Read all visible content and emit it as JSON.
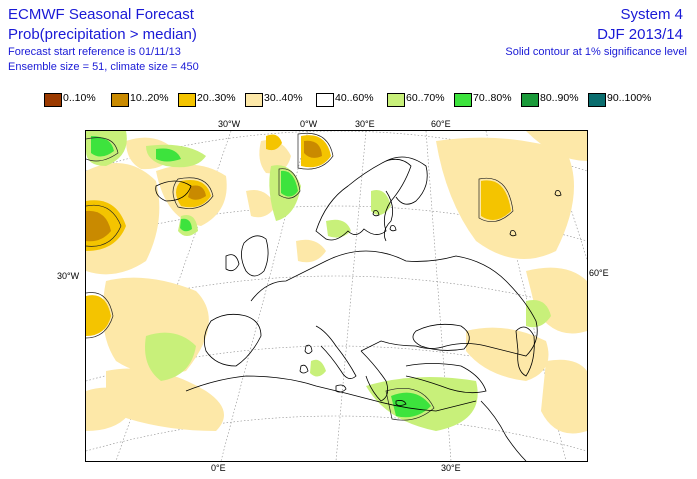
{
  "header": {
    "title": "ECMWF Seasonal Forecast",
    "subtitle": "Prob(precipitation > median)",
    "start_reference": "Forecast start reference is 01/11/13",
    "ensemble": "Ensemble size = 51, climate size = 450",
    "system": "System 4",
    "period": "DJF 2013/14",
    "significance_note": "Solid contour at 1% significance level"
  },
  "legend": [
    {
      "label": "0..10%",
      "color": "#9b3a00"
    },
    {
      "label": "10..20%",
      "color": "#c98a00"
    },
    {
      "label": "20..30%",
      "color": "#f4c400"
    },
    {
      "label": "30..40%",
      "color": "#fde8a8"
    },
    {
      "label": "40..60%",
      "color": "#ffffff"
    },
    {
      "label": "60..70%",
      "color": "#c8f07a"
    },
    {
      "label": "70..80%",
      "color": "#3de33d"
    },
    {
      "label": "80..90%",
      "color": "#1a9a3a"
    },
    {
      "label": "90..100%",
      "color": "#0a6d6e"
    }
  ],
  "axis_labels": {
    "top_30w": "30°W",
    "top_0w": "0°W",
    "top_30e": "30°E",
    "top_60e": "60°E",
    "left_30w": "30°W",
    "right_60e": "60°E",
    "bottom_0e": "0°E",
    "bottom_30e": "30°E"
  }
}
